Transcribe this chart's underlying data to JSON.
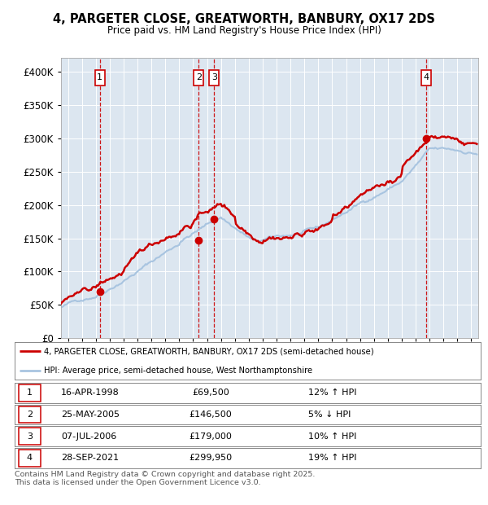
{
  "title": "4, PARGETER CLOSE, GREATWORTH, BANBURY, OX17 2DS",
  "subtitle": "Price paid vs. HM Land Registry's House Price Index (HPI)",
  "bg_color": "#dce6f0",
  "red_line_color": "#cc0000",
  "blue_line_color": "#a8c4e0",
  "grid_color": "#ffffff",
  "vline_color": "#cc0000",
  "ylim": [
    0,
    420000
  ],
  "yticks": [
    0,
    50000,
    100000,
    150000,
    200000,
    250000,
    300000,
    350000,
    400000
  ],
  "ytick_labels": [
    "£0",
    "£50K",
    "£100K",
    "£150K",
    "£200K",
    "£250K",
    "£300K",
    "£350K",
    "£400K"
  ],
  "transactions": [
    {
      "num": 1,
      "date": "16-APR-1998",
      "price": 69500,
      "pct": "12%",
      "dir": "↑",
      "year_float": 1998.29
    },
    {
      "num": 2,
      "date": "25-MAY-2005",
      "price": 146500,
      "pct": "5%",
      "dir": "↓",
      "year_float": 2005.4
    },
    {
      "num": 3,
      "date": "07-JUL-2006",
      "price": 179000,
      "pct": "10%",
      "dir": "↑",
      "year_float": 2006.52
    },
    {
      "num": 4,
      "date": "28-SEP-2021",
      "price": 299950,
      "pct": "19%",
      "dir": "↑",
      "year_float": 2021.75
    }
  ],
  "legend_red": "4, PARGETER CLOSE, GREATWORTH, BANBURY, OX17 2DS (semi-detached house)",
  "legend_blue": "HPI: Average price, semi-detached house, West Northamptonshire",
  "footer": "Contains HM Land Registry data © Crown copyright and database right 2025.\nThis data is licensed under the Open Government Licence v3.0.",
  "xmin": 1995.5,
  "xmax": 2025.5
}
